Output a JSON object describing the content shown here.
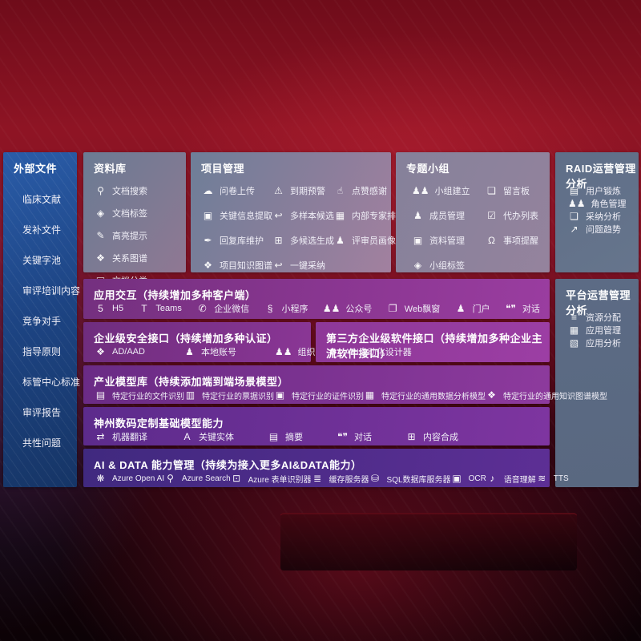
{
  "palette": {
    "background_red": "#8e1424",
    "sidebar_blue": "#1d4483",
    "top_box_slate": "#7e7a93",
    "right_box_slate": "#5f6e88",
    "row_purple": "#8c3793",
    "row_indigo": "#40297f",
    "text": "#ffffff"
  },
  "sidebar": {
    "title": "外部文件",
    "items": [
      {
        "label": "临床文献"
      },
      {
        "label": "发补文件"
      },
      {
        "label": "关键字池"
      },
      {
        "label": "审评培训内容"
      },
      {
        "label": "竞争对手"
      },
      {
        "label": "指导原则"
      },
      {
        "label": "标管中心标准"
      },
      {
        "label": "审评报告"
      },
      {
        "label": "共性问题"
      }
    ]
  },
  "sections": {
    "library": {
      "title": "资料库",
      "columns": [
        [
          {
            "icon": "doc-search-icon",
            "label": "文档搜索"
          },
          {
            "icon": "tag-icon",
            "label": "文档标签"
          },
          {
            "icon": "highlight-icon",
            "label": "高亮提示"
          },
          {
            "icon": "relation-graph-icon",
            "label": "关系图谱"
          },
          {
            "icon": "doc-category-icon",
            "label": "文档分类"
          }
        ]
      ]
    },
    "project": {
      "title": "项目管理",
      "columns": [
        [
          {
            "icon": "upload-cloud-icon",
            "label": "问卷上传"
          },
          {
            "icon": "key-info-icon",
            "label": "关键信息提取"
          },
          {
            "icon": "reply-pen-icon",
            "label": "回复库维护"
          },
          {
            "icon": "knowledge-graph-icon",
            "label": "项目知识图谱"
          }
        ],
        [
          {
            "icon": "alarm-icon",
            "label": "到期预警"
          },
          {
            "icon": "reply-arrow-icon",
            "label": "多样本候选"
          },
          {
            "icon": "multi-generate-icon",
            "label": "多候选生成"
          },
          {
            "icon": "adopt-arrow-icon",
            "label": "一键采纳"
          }
        ],
        [
          {
            "icon": "thumb-up-icon",
            "label": "点赞感谢"
          },
          {
            "icon": "rank-chart-icon",
            "label": "内部专家排名"
          },
          {
            "icon": "person-icon",
            "label": "评审员画像"
          }
        ]
      ]
    },
    "groups": {
      "title": "专题小组",
      "columns": [
        [
          {
            "icon": "group-icon",
            "label": "小组建立"
          },
          {
            "icon": "person-icon",
            "label": "成员管理"
          },
          {
            "icon": "album-icon",
            "label": "资料管理"
          },
          {
            "icon": "tag-icon",
            "label": "小组标签"
          }
        ],
        [
          {
            "icon": "message-board-icon",
            "label": "留言板"
          },
          {
            "icon": "todo-list-icon",
            "label": "代办列表"
          },
          {
            "icon": "bell-icon",
            "label": "事项提醒"
          }
        ]
      ]
    },
    "raid": {
      "title": "RAID运营管理分析",
      "columns": [
        [
          {
            "icon": "id-card-icon",
            "label": "用户锻炼"
          },
          {
            "icon": "group-icon",
            "label": "角色管理"
          },
          {
            "icon": "qa-chat-icon",
            "label": "采纳分析"
          },
          {
            "icon": "trend-icon",
            "label": "问题趋势"
          }
        ]
      ]
    },
    "platform": {
      "title": "平台运营管理分析",
      "columns": [
        [
          {
            "icon": "resource-list-icon",
            "label": "资源分配"
          },
          {
            "icon": "app-grid-icon",
            "label": "应用管理"
          },
          {
            "icon": "app-chart-icon",
            "label": "应用分析"
          }
        ]
      ]
    },
    "interaction": {
      "title": "应用交互（持续增加多种客户端）",
      "items": [
        {
          "icon": "h5-icon",
          "label": "H5"
        },
        {
          "icon": "teams-icon",
          "label": "Teams"
        },
        {
          "icon": "wechat-work-icon",
          "label": "企业微信"
        },
        {
          "icon": "miniprogram-icon",
          "label": "小程序"
        },
        {
          "icon": "official-account-icon",
          "label": "公众号"
        },
        {
          "icon": "web-window-icon",
          "label": "Web飘窗"
        },
        {
          "icon": "portal-icon",
          "label": "门户"
        },
        {
          "icon": "dialog-icon",
          "label": "对话"
        }
      ]
    },
    "security": {
      "title": "企业级安全接口（持续增加多种认证）",
      "items": [
        {
          "icon": "ad-aad-icon",
          "label": "AD/AAD"
        },
        {
          "icon": "local-account-icon",
          "label": "本地账号"
        },
        {
          "icon": "org-icon",
          "label": "组织定义"
        }
      ]
    },
    "thirdparty": {
      "title": "第三方企业级软件接口（持续增加多种企业主流软件接口）",
      "items": [
        {
          "icon": "api-gear-icon",
          "label": "API自动化设计器"
        }
      ]
    },
    "industry": {
      "title": "产业模型库（持续添加端到端场景模型）",
      "items": [
        {
          "icon": "file-recog-icon",
          "label": "特定行业的文件识别"
        },
        {
          "icon": "receipt-recog-icon",
          "label": "特定行业的票据识别"
        },
        {
          "icon": "cert-recog-icon",
          "label": "特定行业的证件识别"
        },
        {
          "icon": "data-analysis-icon",
          "label": "特定行业的通用数据分析模型"
        },
        {
          "icon": "knowledge-graph-icon",
          "label": "特定行业的通用知识图谱模型"
        }
      ]
    },
    "basemodel": {
      "title": "神州数码定制基础模型能力",
      "items": [
        {
          "icon": "translate-icon",
          "label": "机器翻译"
        },
        {
          "icon": "entity-icon",
          "label": "关键实体"
        },
        {
          "icon": "summary-icon",
          "label": "摘要"
        },
        {
          "icon": "dialog-icon",
          "label": "对话"
        },
        {
          "icon": "content-merge-icon",
          "label": "内容合成"
        }
      ]
    },
    "aidata": {
      "title": "AI & DATA 能力管理（持续为接入更多AI&DATA能力）",
      "items": [
        {
          "icon": "openai-icon",
          "label": "Azure Open AI"
        },
        {
          "icon": "azure-search-icon",
          "label": "Azure Search"
        },
        {
          "icon": "form-recog-icon",
          "label": "Azure 表单识别器"
        },
        {
          "icon": "cache-server-icon",
          "label": "缓存服务器"
        },
        {
          "icon": "sql-server-icon",
          "label": "SQL数据库服务器"
        },
        {
          "icon": "ocr-icon",
          "label": "OCR"
        },
        {
          "icon": "speech-icon",
          "label": "语音理解"
        },
        {
          "icon": "tts-icon",
          "label": "TTS"
        }
      ]
    }
  }
}
